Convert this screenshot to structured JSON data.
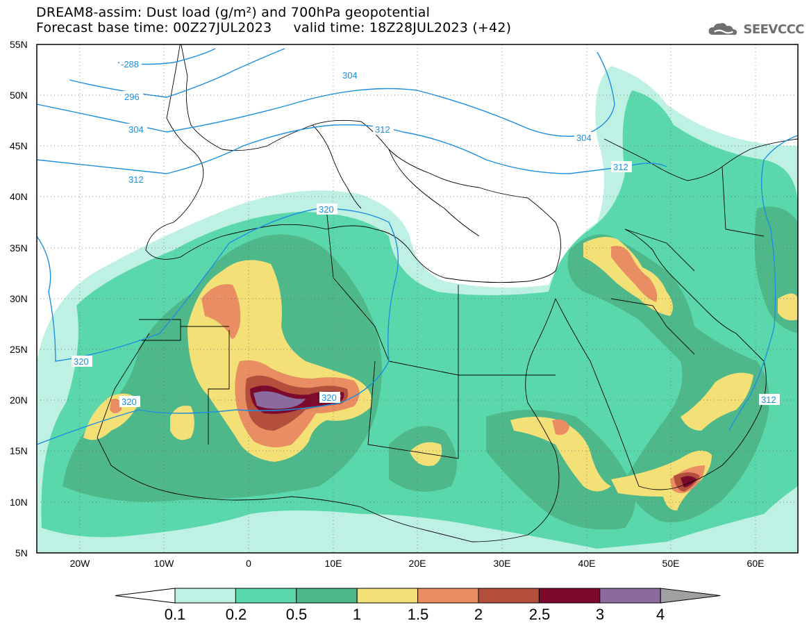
{
  "title": {
    "line1": "DREAM8-assim: Dust load (g/m²) and 700hPa geopotential",
    "line2": "Forecast base time: 00Z27JUL2023     valid time: 18Z28JUL2023 (+42)"
  },
  "logo": {
    "text": "SEEVCCC",
    "icon": "cloud-icon"
  },
  "map": {
    "lon_range": [
      -25,
      65
    ],
    "lat_range": [
      5,
      55
    ],
    "lat_ticks": [
      "55N",
      "50N",
      "45N",
      "40N",
      "35N",
      "30N",
      "25N",
      "20N",
      "15N",
      "10N",
      "5N"
    ],
    "lon_ticks": [
      "20W",
      "10W",
      "0",
      "10E",
      "20E",
      "30E",
      "40E",
      "50E",
      "60E"
    ],
    "grid": "dotted"
  },
  "geopotential_labels": [
    "-288",
    "296",
    "304",
    "312",
    "304",
    "312",
    "304",
    "312",
    "320",
    "320",
    "320",
    "320",
    "312"
  ],
  "colorbar": {
    "levels": [
      "0.1",
      "0.2",
      "0.5",
      "1",
      "1.5",
      "2",
      "2.5",
      "3",
      "4"
    ],
    "colors": [
      "#ffffff",
      "#bff0e4",
      "#5ad8ac",
      "#4fb88a",
      "#f3e077",
      "#e98e62",
      "#b34f3b",
      "#7d0a2c",
      "#8b6a9e",
      "#a0a0a0"
    ]
  }
}
